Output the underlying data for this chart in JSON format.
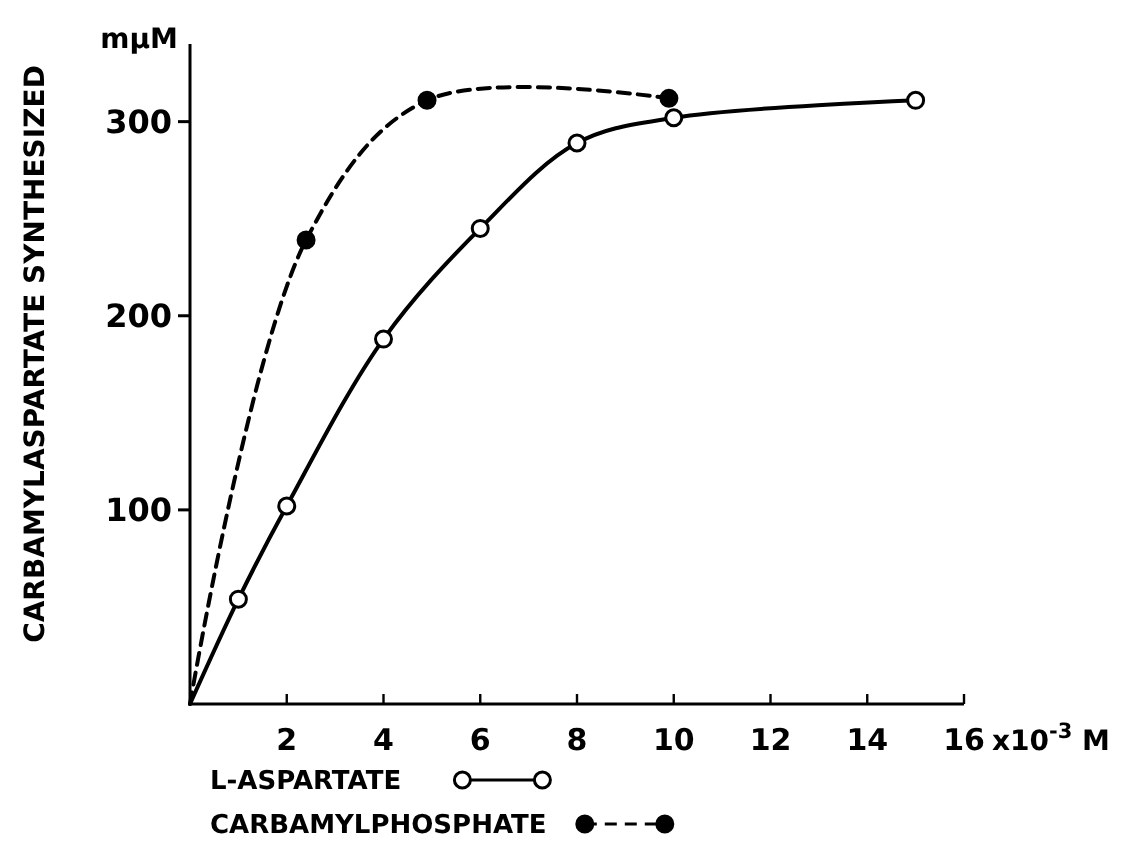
{
  "chart_data": {
    "type": "line",
    "ylabel": "CARBAMYLASPARTATE SYNTHESIZED",
    "annotations": [
      "mμM"
    ],
    "xlabel": "x10$^{-3}$ M",
    "xlim": [
      0,
      16
    ],
    "xticks": [
      2,
      4,
      6,
      8,
      10,
      12,
      14,
      16
    ],
    "ylim": [
      0,
      340
    ],
    "yticks": [
      100,
      200,
      300
    ],
    "grid": false,
    "legend": "bottom",
    "marker": "circle",
    "series": [
      {
        "name": "L-ASPARTATE",
        "color": "#000000",
        "line_style": "solid",
        "x": [
          0,
          1,
          2,
          4,
          6,
          8,
          10,
          15
        ],
        "values": [
          0,
          54,
          102,
          188,
          245,
          289,
          302,
          311
        ]
      },
      {
        "name": "CARBAMYLPHOSPHATE",
        "color": "#000000",
        "line_style": "dashed",
        "x": [
          0,
          2.4,
          4.9,
          9.9
        ],
        "values": [
          0,
          239,
          311,
          312
        ]
      }
    ]
  }
}
